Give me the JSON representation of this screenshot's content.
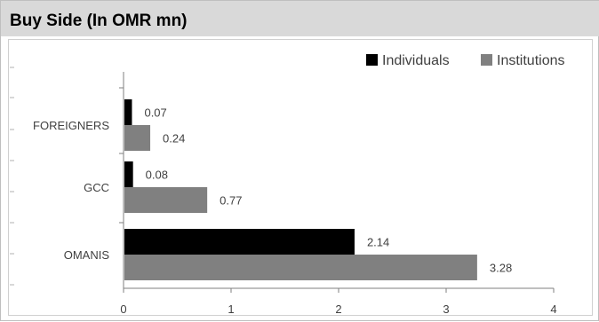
{
  "title": "Buy Side (In OMR mn)",
  "chart_data": {
    "type": "bar",
    "orientation": "horizontal",
    "categories": [
      "OMANIS",
      "GCC",
      "FOREIGNERS"
    ],
    "series": [
      {
        "name": "Individuals",
        "values": [
          2.14,
          0.08,
          0.07
        ],
        "color": "#000000",
        "labels": [
          "2.14",
          "0.08",
          "0.07"
        ]
      },
      {
        "name": "Institutions",
        "values": [
          3.28,
          0.77,
          0.24
        ],
        "color": "#808080",
        "labels": [
          "3.28",
          "0.77",
          "0.24"
        ]
      }
    ],
    "xlim": [
      0,
      4
    ],
    "xticks": [
      0,
      1,
      2,
      3,
      4
    ],
    "legend_position": "top-right",
    "grid": false
  }
}
